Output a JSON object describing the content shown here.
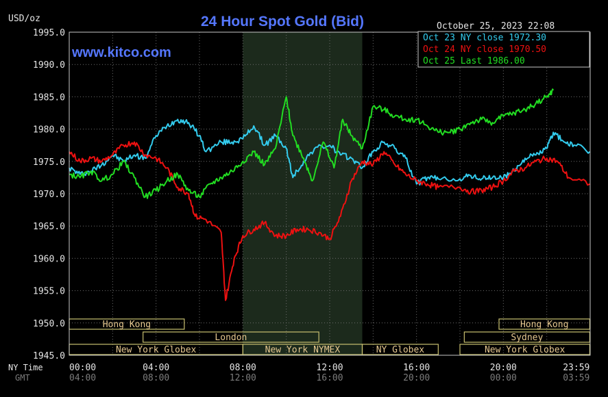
{
  "header": {
    "title": "24 Hour Spot Gold (Bid)",
    "y_unit": "USD/oz",
    "watermark": "www.kitco.com",
    "timestamp": "October 25, 2023 22:08"
  },
  "legend": [
    {
      "label": "Oct 23 NY close 1972.30",
      "color": "#33ccee"
    },
    {
      "label": "Oct 24 NY close 1970.50",
      "color": "#ee1111"
    },
    {
      "label": "Oct 25 Last 1986.00",
      "color": "#22dd22"
    }
  ],
  "axis": {
    "row1_label": "NY Time",
    "row2_label": "GMT",
    "ny_ticks": [
      "00:00",
      "04:00",
      "08:00",
      "12:00",
      "16:00",
      "20:00",
      "23:59"
    ],
    "gmt_ticks": [
      "04:00",
      "08:00",
      "12:00",
      "16:00",
      "20:00",
      "00:00",
      "03:59"
    ],
    "y_ticks": [
      "1995.0",
      "1990.0",
      "1985.0",
      "1980.0",
      "1975.0",
      "1970.0",
      "1965.0",
      "1960.0",
      "1955.0",
      "1950.0",
      "1945.0"
    ]
  },
  "sessions": [
    {
      "label": "Hong Kong",
      "start": 0.0,
      "end": 5.3,
      "row": 0
    },
    {
      "label": "Hong Kong",
      "start": 19.8,
      "end": 23.98,
      "row": 0
    },
    {
      "label": "London",
      "start": 3.4,
      "end": 11.5,
      "row": 1
    },
    {
      "label": "Sydney",
      "start": 18.2,
      "end": 23.98,
      "row": 1
    },
    {
      "label": "New York Globex",
      "start": 0.0,
      "end": 8.0,
      "row": 2
    },
    {
      "label": "New York NYMEX",
      "start": 8.0,
      "end": 13.5,
      "row": 2
    },
    {
      "label": "NY Globex",
      "start": 13.5,
      "end": 17.0,
      "row": 2
    },
    {
      "label": "New York Globex",
      "start": 18.0,
      "end": 23.98,
      "row": 2
    }
  ],
  "colors": {
    "background": "#000000",
    "plot_border": "#c8c8c8",
    "grid": "#6e6e6e",
    "nymex_shade": "#1c2a1c",
    "title": "#5577ff",
    "session_border": "#c9c070",
    "session_text": "#e6c890",
    "axis_text": "#e6e6e6",
    "gmt_text": "#7c7c7c"
  },
  "chart_data": {
    "type": "line",
    "title": "24 Hour Spot Gold (Bid)",
    "ylabel": "USD/oz",
    "xlabel": "NY Time",
    "xlim": [
      0,
      24
    ],
    "ylim": [
      1945,
      1995
    ],
    "x_unit": "hours (NY time)",
    "grid": true,
    "legend_position": "top-right",
    "shaded_region": {
      "label": "New York NYMEX",
      "x": [
        8.0,
        13.5
      ]
    },
    "series": [
      {
        "name": "Oct 23",
        "color": "#33ccee",
        "points": [
          [
            0,
            1974.0
          ],
          [
            0.5,
            1973.0
          ],
          [
            1,
            1973.5
          ],
          [
            1.5,
            1974.5
          ],
          [
            2,
            1976.0
          ],
          [
            2.5,
            1975.0
          ],
          [
            3,
            1976.0
          ],
          [
            3.5,
            1975.5
          ],
          [
            4,
            1979.0
          ],
          [
            4.5,
            1980.5
          ],
          [
            5,
            1981.5
          ],
          [
            5.5,
            1981.0
          ],
          [
            6,
            1979.0
          ],
          [
            6.3,
            1976.5
          ],
          [
            7,
            1978.0
          ],
          [
            7.5,
            1978.0
          ],
          [
            8,
            1978.5
          ],
          [
            8.5,
            1980.5
          ],
          [
            9,
            1977.5
          ],
          [
            9.5,
            1979.0
          ],
          [
            10,
            1977.0
          ],
          [
            10.3,
            1972.5
          ],
          [
            10.8,
            1975.0
          ],
          [
            11.3,
            1977.0
          ],
          [
            12,
            1977.5
          ],
          [
            12.5,
            1976.0
          ],
          [
            13,
            1975.5
          ],
          [
            13.5,
            1974.0
          ],
          [
            14,
            1976.5
          ],
          [
            14.5,
            1978.0
          ],
          [
            15,
            1977.0
          ],
          [
            15.5,
            1975.5
          ],
          [
            16,
            1971.5
          ],
          [
            16.5,
            1972.5
          ],
          [
            17,
            1972.3
          ],
          [
            18,
            1972.3
          ],
          [
            18.5,
            1972.8
          ],
          [
            19,
            1972.3
          ],
          [
            19.5,
            1972.5
          ],
          [
            20,
            1972.5
          ],
          [
            20.5,
            1973.5
          ],
          [
            21,
            1975.5
          ],
          [
            21.5,
            1976.0
          ],
          [
            22,
            1977.0
          ],
          [
            22.3,
            1979.5
          ],
          [
            22.8,
            1978.0
          ],
          [
            23.3,
            1977.5
          ],
          [
            23.98,
            1976.5
          ]
        ]
      },
      {
        "name": "Oct 24",
        "color": "#ee1111",
        "points": [
          [
            0,
            1976.5
          ],
          [
            0.5,
            1975.0
          ],
          [
            1,
            1975.5
          ],
          [
            1.5,
            1975.0
          ],
          [
            2,
            1976.0
          ],
          [
            2.5,
            1977.5
          ],
          [
            3,
            1978.0
          ],
          [
            3.5,
            1976.0
          ],
          [
            4,
            1975.5
          ],
          [
            4.5,
            1974.0
          ],
          [
            5,
            1971.0
          ],
          [
            5.5,
            1970.0
          ],
          [
            5.8,
            1966.5
          ],
          [
            6.3,
            1966.0
          ],
          [
            7,
            1964.0
          ],
          [
            7.2,
            1953.5
          ],
          [
            7.6,
            1960.0
          ],
          [
            8,
            1963.5
          ],
          [
            8.5,
            1964.5
          ],
          [
            9,
            1965.5
          ],
          [
            9.5,
            1963.5
          ],
          [
            10,
            1963.5
          ],
          [
            10.5,
            1964.5
          ],
          [
            11,
            1964.5
          ],
          [
            11.5,
            1964.0
          ],
          [
            12,
            1963.0
          ],
          [
            12.5,
            1966.5
          ],
          [
            13,
            1972.0
          ],
          [
            13.5,
            1975.0
          ],
          [
            14,
            1974.5
          ],
          [
            14.5,
            1976.5
          ],
          [
            15,
            1974.5
          ],
          [
            15.5,
            1973.0
          ],
          [
            16,
            1972.0
          ],
          [
            16.5,
            1971.5
          ],
          [
            17,
            1971.0
          ],
          [
            18,
            1971.0
          ],
          [
            18.5,
            1970.3
          ],
          [
            19,
            1970.5
          ],
          [
            19.5,
            1971.0
          ],
          [
            20,
            1972.0
          ],
          [
            20.5,
            1973.5
          ],
          [
            21,
            1974.0
          ],
          [
            21.5,
            1975.0
          ],
          [
            22,
            1975.5
          ],
          [
            22.5,
            1975.0
          ],
          [
            23,
            1972.5
          ],
          [
            23.98,
            1971.5
          ]
        ]
      },
      {
        "name": "Oct 25",
        "color": "#22dd22",
        "points": [
          [
            0,
            1973.0
          ],
          [
            0.5,
            1972.5
          ],
          [
            1,
            1973.5
          ],
          [
            1.5,
            1972.0
          ],
          [
            2,
            1973.0
          ],
          [
            2.5,
            1975.0
          ],
          [
            3,
            1972.5
          ],
          [
            3.5,
            1969.5
          ],
          [
            4,
            1970.5
          ],
          [
            4.5,
            1972.0
          ],
          [
            5,
            1973.0
          ],
          [
            5.5,
            1970.5
          ],
          [
            6,
            1969.5
          ],
          [
            6.5,
            1971.5
          ],
          [
            7,
            1972.5
          ],
          [
            7.5,
            1973.5
          ],
          [
            8,
            1975.0
          ],
          [
            8.5,
            1976.5
          ],
          [
            9,
            1974.5
          ],
          [
            9.5,
            1977.0
          ],
          [
            10,
            1985.0
          ],
          [
            10.3,
            1979.0
          ],
          [
            10.8,
            1975.5
          ],
          [
            11.2,
            1972.0
          ],
          [
            11.7,
            1978.0
          ],
          [
            12.2,
            1974.0
          ],
          [
            12.6,
            1981.5
          ],
          [
            13,
            1979.0
          ],
          [
            13.5,
            1977.0
          ],
          [
            14,
            1983.5
          ],
          [
            14.5,
            1983.0
          ],
          [
            15,
            1982.0
          ],
          [
            15.5,
            1981.5
          ],
          [
            16,
            1981.5
          ],
          [
            16.5,
            1980.5
          ],
          [
            17,
            1979.5
          ],
          [
            17.5,
            1979.5
          ],
          [
            18,
            1980.0
          ],
          [
            18.5,
            1981.0
          ],
          [
            19,
            1981.5
          ],
          [
            19.5,
            1981.0
          ],
          [
            20,
            1982.0
          ],
          [
            20.5,
            1982.5
          ],
          [
            21,
            1983.0
          ],
          [
            21.5,
            1984.0
          ],
          [
            22,
            1985.0
          ],
          [
            22.3,
            1986.0
          ]
        ]
      }
    ]
  }
}
